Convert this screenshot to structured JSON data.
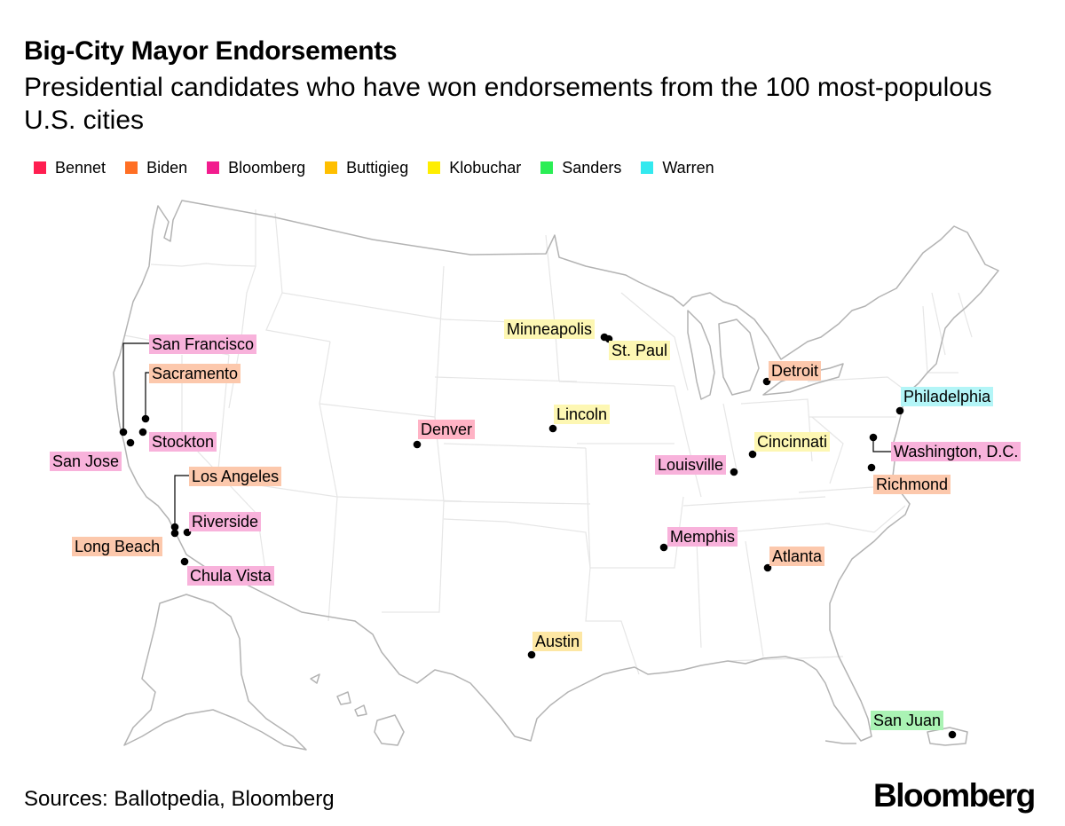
{
  "header": {
    "title": "Big-City Mayor Endorsements",
    "subtitle": "Presidential candidates who have won endorsements from the 100 most-populous U.S. cities"
  },
  "legend": [
    {
      "name": "Bennet",
      "color": "#ff1e50"
    },
    {
      "name": "Biden",
      "color": "#ff6f24"
    },
    {
      "name": "Bloomberg",
      "color": "#f21c8e"
    },
    {
      "name": "Buttigieg",
      "color": "#ffbf00"
    },
    {
      "name": "Klobuchar",
      "color": "#ffee00"
    },
    {
      "name": "Sanders",
      "color": "#2bee55"
    },
    {
      "name": "Warren",
      "color": "#33e9ef"
    }
  ],
  "label_colors": {
    "Bennet": "#ffb3c5",
    "Biden": "#fcc8ac",
    "Bloomberg": "#f8b2db",
    "Buttigieg": "#fde7a4",
    "Klobuchar": "#fdf7b3",
    "Sanders": "#aaf3b4",
    "Warren": "#b3f5f7"
  },
  "cities": [
    {
      "name": "San Francisco",
      "candidate": "Bloomberg"
    },
    {
      "name": "Sacramento",
      "candidate": "Biden"
    },
    {
      "name": "Stockton",
      "candidate": "Bloomberg"
    },
    {
      "name": "San Jose",
      "candidate": "Bloomberg"
    },
    {
      "name": "Los Angeles",
      "candidate": "Biden"
    },
    {
      "name": "Riverside",
      "candidate": "Bloomberg"
    },
    {
      "name": "Long Beach",
      "candidate": "Biden"
    },
    {
      "name": "Chula Vista",
      "candidate": "Bloomberg"
    },
    {
      "name": "Denver",
      "candidate": "Bennet"
    },
    {
      "name": "Minneapolis",
      "candidate": "Klobuchar"
    },
    {
      "name": "St. Paul",
      "candidate": "Klobuchar"
    },
    {
      "name": "Lincoln",
      "candidate": "Klobuchar"
    },
    {
      "name": "Austin",
      "candidate": "Buttigieg"
    },
    {
      "name": "Detroit",
      "candidate": "Biden"
    },
    {
      "name": "Cincinnati",
      "candidate": "Klobuchar"
    },
    {
      "name": "Louisville",
      "candidate": "Bloomberg"
    },
    {
      "name": "Memphis",
      "candidate": "Bloomberg"
    },
    {
      "name": "Atlanta",
      "candidate": "Biden"
    },
    {
      "name": "Philadelphia",
      "candidate": "Warren"
    },
    {
      "name": "Washington, D.C.",
      "candidate": "Bloomberg"
    },
    {
      "name": "Richmond",
      "candidate": "Biden"
    },
    {
      "name": "San Juan",
      "candidate": "Sanders"
    }
  ],
  "footer": {
    "source": "Sources: Ballotpedia, Bloomberg",
    "brand": "Bloomberg"
  }
}
